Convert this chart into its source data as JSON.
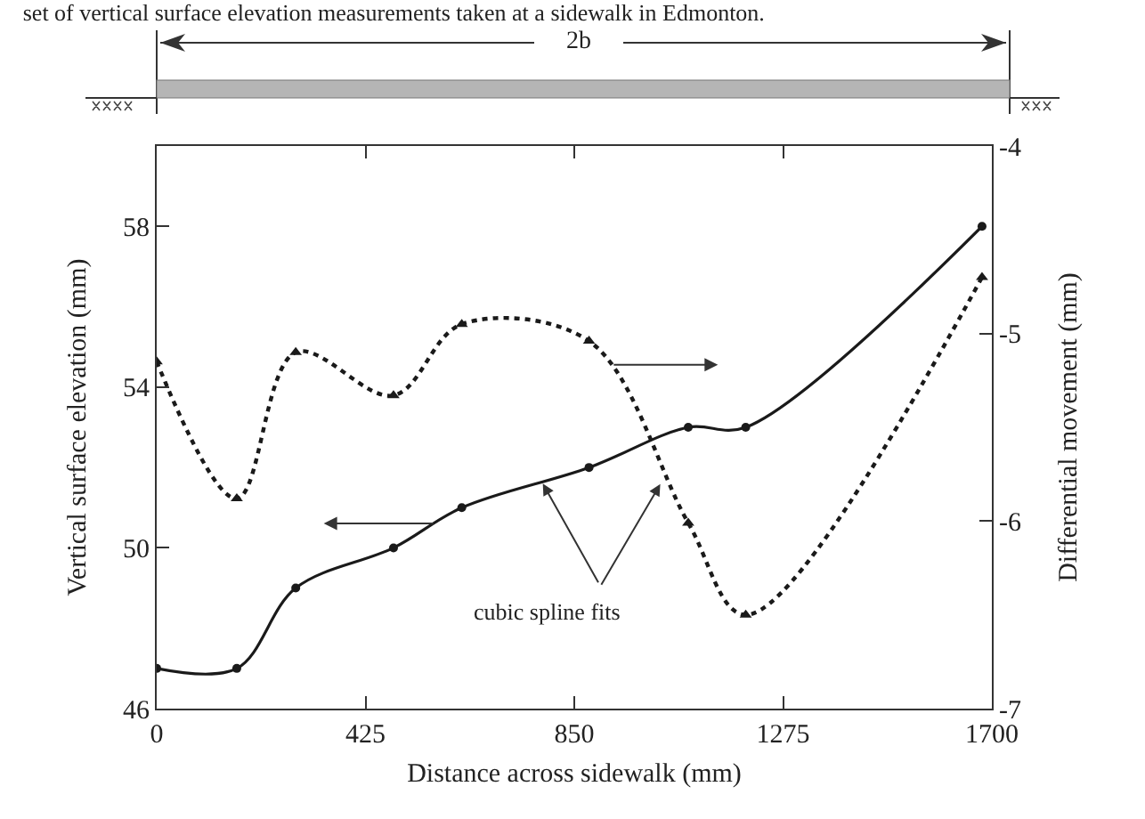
{
  "chart_data": {
    "type": "line",
    "title": "set of vertical surface elevation measurements taken at a sidewalk in Edmonton.",
    "xlabel": "Distance across sidewalk (mm)",
    "ylabel": "Vertical surface elevation (mm)",
    "y2label": "Differential movement (mm)",
    "annotations": [
      {
        "text": "cubic spline fits",
        "x": 786,
        "y": 51.6
      },
      "2b"
    ],
    "series": [
      {
        "color": "#1a1a1a",
        "marker": "circle",
        "line_style": "solid",
        "x": [
          0,
          163,
          283,
          482,
          621,
          880,
          1082,
          1199,
          1680
        ],
        "values": [
          47,
          47,
          49,
          50,
          51,
          52,
          53,
          53,
          58
        ]
      },
      {
        "color": "#1a1a1a",
        "marker": "triangle",
        "line_style": "dotted",
        "axis": "y2",
        "x": [
          0,
          163,
          283,
          482,
          621,
          880,
          1082,
          1199,
          1680
        ],
        "values": [
          -5.15,
          -5.88,
          -5.1,
          -5.33,
          -4.95,
          -5.04,
          -6.01,
          -6.5,
          -4.7
        ]
      }
    ],
    "xlim": [
      0,
      1700
    ],
    "xticks": [
      0,
      425,
      850,
      1275,
      1700
    ],
    "ylim": [
      46,
      60
    ],
    "yticks": [
      46,
      50,
      54,
      58
    ],
    "y2lim": [
      -7,
      -4
    ],
    "y2ticks": [
      -7,
      -6,
      -5,
      -4
    ],
    "grid": false
  }
}
